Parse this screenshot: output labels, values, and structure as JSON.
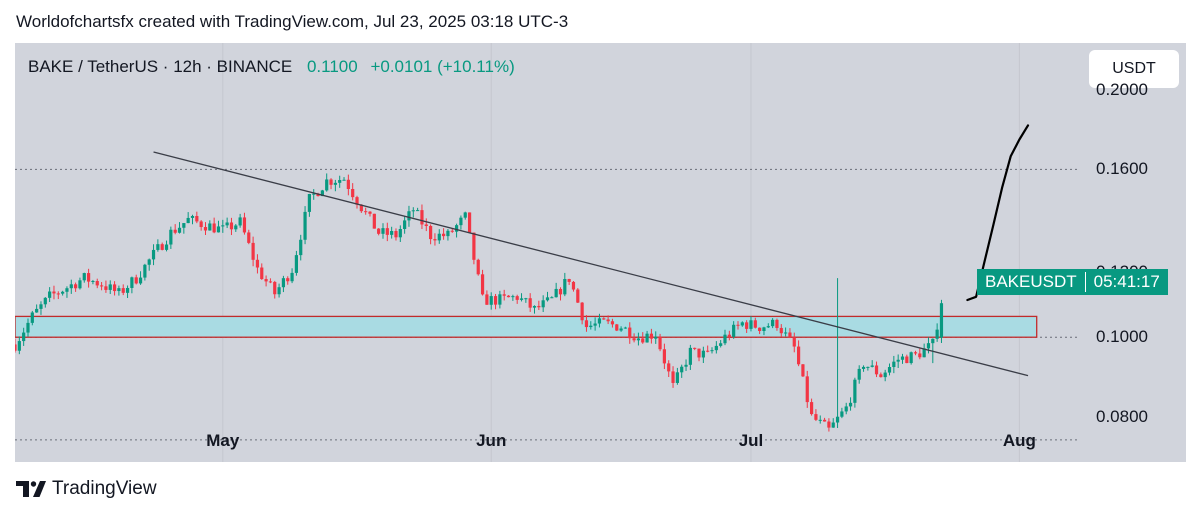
{
  "header": {
    "credit": "Worldofchartsfx created with TradingView.com, Jul 23, 2025 03:18 UTC-3"
  },
  "symbol": {
    "title": "BAKE / TetherUS · 12h · BINANCE",
    "price": "0.1100",
    "change": "+0.0101 (+10.11%)"
  },
  "currency_button": "USDT",
  "price_tag": {
    "symbol": "BAKEUSDT",
    "timer": "05:41:17"
  },
  "footer": {
    "brand": "TradingView"
  },
  "colors": {
    "up": "#089981",
    "down": "#f23645",
    "zone_fill": "#a9dbe3",
    "zone_border": "#c12b2b",
    "background": "#d1d4dc"
  },
  "chart_data": {
    "type": "candlestick",
    "title": "BAKE / TetherUS · 12h · BINANCE",
    "xlabel": "",
    "ylabel": "",
    "y_scale": "log",
    "ylim": [
      0.0705,
      0.228
    ],
    "x_ticks": [
      {
        "label": "May",
        "date": "2025-05-01"
      },
      {
        "label": "Jun",
        "date": "2025-06-01"
      },
      {
        "label": "Jul",
        "date": "2025-07-01"
      },
      {
        "label": "Aug",
        "date": "2025-08-01"
      }
    ],
    "y_ticks": [
      "0.2000",
      "0.1600",
      "0.1200",
      "0.1000",
      "0.0800"
    ],
    "dotted_levels": [
      0.16,
      0.1,
      0.075
    ],
    "support_zone": {
      "low": 0.1,
      "high": 0.106,
      "start": "2025-04-07",
      "end": "2025-08-03"
    },
    "trendline": [
      {
        "date": "2025-04-23",
        "price": 0.168
      },
      {
        "date": "2025-08-02",
        "price": 0.0898
      }
    ],
    "projection_path": [
      {
        "date": "2025-07-26",
        "price": 0.111
      },
      {
        "date": "2025-07-27",
        "price": 0.112
      },
      {
        "date": "2025-07-28",
        "price": 0.124
      },
      {
        "date": "2025-07-29",
        "price": 0.137
      },
      {
        "date": "2025-07-30",
        "price": 0.152
      },
      {
        "date": "2025-07-31",
        "price": 0.166
      },
      {
        "date": "2025-08-01",
        "price": 0.174
      },
      {
        "date": "2025-08-02",
        "price": 0.181
      }
    ],
    "closes": [
      [
        "2025-04-07",
        0.098
      ],
      [
        "2025-04-09",
        0.106
      ],
      [
        "2025-04-11",
        0.112
      ],
      [
        "2025-04-13",
        0.115
      ],
      [
        "2025-04-15",
        0.118
      ],
      [
        "2025-04-17",
        0.116
      ],
      [
        "2025-04-19",
        0.113
      ],
      [
        "2025-04-21",
        0.118
      ],
      [
        "2025-04-23",
        0.126
      ],
      [
        "2025-04-25",
        0.134
      ],
      [
        "2025-04-27",
        0.139
      ],
      [
        "2025-04-29",
        0.137
      ],
      [
        "2025-05-01",
        0.135
      ],
      [
        "2025-05-03",
        0.138
      ],
      [
        "2025-05-05",
        0.121
      ],
      [
        "2025-05-07",
        0.113
      ],
      [
        "2025-05-09",
        0.121
      ],
      [
        "2025-05-11",
        0.147
      ],
      [
        "2025-05-13",
        0.155
      ],
      [
        "2025-05-15",
        0.156
      ],
      [
        "2025-05-17",
        0.144
      ],
      [
        "2025-05-19",
        0.134
      ],
      [
        "2025-05-21",
        0.133
      ],
      [
        "2025-05-23",
        0.143
      ],
      [
        "2025-05-25",
        0.133
      ],
      [
        "2025-05-27",
        0.133
      ],
      [
        "2025-05-29",
        0.14
      ],
      [
        "2025-05-31",
        0.111
      ],
      [
        "2025-06-02",
        0.111
      ],
      [
        "2025-06-04",
        0.112
      ],
      [
        "2025-06-06",
        0.108
      ],
      [
        "2025-06-08",
        0.111
      ],
      [
        "2025-06-10",
        0.118
      ],
      [
        "2025-06-12",
        0.103
      ],
      [
        "2025-06-14",
        0.104
      ],
      [
        "2025-06-16",
        0.103
      ],
      [
        "2025-06-18",
        0.1
      ],
      [
        "2025-06-20",
        0.101
      ],
      [
        "2025-06-22",
        0.087
      ],
      [
        "2025-06-24",
        0.096
      ],
      [
        "2025-06-26",
        0.095
      ],
      [
        "2025-06-28",
        0.1
      ],
      [
        "2025-06-30",
        0.104
      ],
      [
        "2025-07-02",
        0.103
      ],
      [
        "2025-07-04",
        0.104
      ],
      [
        "2025-07-06",
        0.097
      ],
      [
        "2025-07-08",
        0.08
      ],
      [
        "2025-07-10",
        0.077
      ],
      [
        "2025-07-12",
        0.082
      ],
      [
        "2025-07-14",
        0.093
      ],
      [
        "2025-07-16",
        0.09
      ],
      [
        "2025-07-18",
        0.094
      ],
      [
        "2025-07-20",
        0.095
      ],
      [
        "2025-07-22",
        0.098
      ],
      [
        "2025-07-23",
        0.11
      ]
    ]
  }
}
